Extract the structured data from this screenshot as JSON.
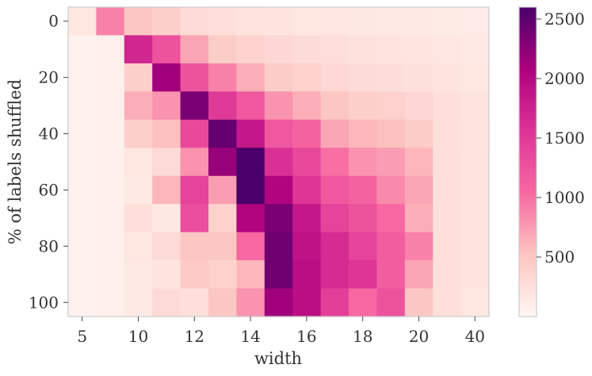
{
  "chart_data": {
    "type": "heatmap",
    "title": "",
    "xlabel": "width",
    "ylabel": "% of labels shuffled",
    "x_categories": [
      "5",
      "",
      "10",
      "",
      "12",
      "",
      "14",
      "",
      "16",
      "",
      "18",
      "",
      "20",
      "",
      "40"
    ],
    "y_categories": [
      "0",
      "",
      "20",
      "",
      "40",
      "",
      "60",
      "",
      "80",
      "",
      "100"
    ],
    "color_scale": {
      "min": 0,
      "max": 2600,
      "ticks": [
        500,
        1000,
        1500,
        2000,
        2500
      ],
      "tick_labels": [
        "500",
        "1000",
        "1500",
        "2000",
        "2500"
      ],
      "stops": [
        {
          "value": 0,
          "color": "#fff7f3"
        },
        {
          "value": 520,
          "color": "#fcc5c0"
        },
        {
          "value": 1040,
          "color": "#f768a1"
        },
        {
          "value": 1560,
          "color": "#dd3497"
        },
        {
          "value": 2080,
          "color": "#ae017e"
        },
        {
          "value": 2600,
          "color": "#49006a"
        }
      ]
    },
    "values": [
      [
        180,
        900,
        500,
        420,
        300,
        250,
        220,
        200,
        180,
        170,
        160,
        150,
        140,
        130,
        120
      ],
      [
        60,
        80,
        1700,
        1250,
        700,
        450,
        380,
        330,
        290,
        260,
        230,
        210,
        190,
        170,
        150
      ],
      [
        60,
        70,
        420,
        2150,
        1250,
        900,
        650,
        450,
        400,
        320,
        290,
        270,
        240,
        200,
        180
      ],
      [
        60,
        70,
        650,
        800,
        2350,
        1500,
        1200,
        800,
        650,
        500,
        420,
        380,
        330,
        250,
        200
      ],
      [
        60,
        70,
        420,
        550,
        1350,
        2450,
        1850,
        1200,
        1100,
        700,
        600,
        550,
        450,
        250,
        220
      ],
      [
        60,
        70,
        180,
        300,
        800,
        2200,
        2600,
        1600,
        1350,
        1000,
        800,
        750,
        600,
        250,
        200
      ],
      [
        60,
        70,
        150,
        600,
        1400,
        750,
        2600,
        2050,
        1550,
        1200,
        1100,
        850,
        700,
        250,
        200
      ],
      [
        60,
        70,
        250,
        160,
        1300,
        400,
        2050,
        2350,
        1850,
        1400,
        1250,
        1050,
        650,
        250,
        200
      ],
      [
        60,
        70,
        180,
        300,
        500,
        500,
        1050,
        2400,
        1900,
        1650,
        1400,
        1150,
        900,
        250,
        200
      ],
      [
        60,
        70,
        150,
        200,
        480,
        400,
        600,
        2400,
        1950,
        1650,
        1550,
        1150,
        700,
        250,
        200
      ],
      [
        60,
        70,
        150,
        300,
        250,
        500,
        800,
        2150,
        1950,
        1450,
        1050,
        1250,
        500,
        250,
        180
      ]
    ]
  }
}
